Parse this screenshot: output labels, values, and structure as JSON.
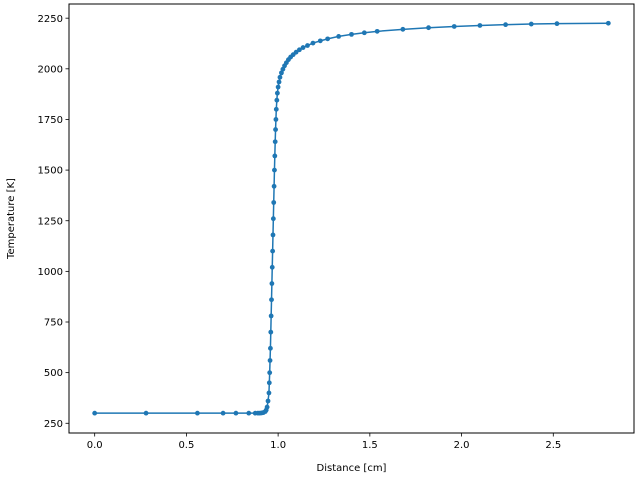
{
  "chart_data": {
    "type": "line",
    "title": "",
    "xlabel": "Distance [cm]",
    "ylabel": "Temperature [K]",
    "xlim": [
      -0.14,
      2.94
    ],
    "ylim": [
      202,
      2320
    ],
    "xticks": [
      0.0,
      0.5,
      1.0,
      1.5,
      2.0,
      2.5
    ],
    "xtick_labels": [
      "0.0",
      "0.5",
      "1.0",
      "1.5",
      "2.0",
      "2.5"
    ],
    "yticks": [
      250,
      500,
      750,
      1000,
      1250,
      1500,
      1750,
      2000,
      2250
    ],
    "ytick_labels": [
      "250",
      "500",
      "750",
      "1000",
      "1250",
      "1500",
      "1750",
      "2000",
      "2250"
    ],
    "grid": false,
    "legend": null,
    "series": [
      {
        "name": "Temperature",
        "color": "#1f77b4",
        "marker": "circle",
        "x": [
          0.0,
          0.28,
          0.56,
          0.7,
          0.77,
          0.84,
          0.875,
          0.89,
          0.9,
          0.91,
          0.92,
          0.93,
          0.935,
          0.94,
          0.945,
          0.95,
          0.952,
          0.954,
          0.956,
          0.958,
          0.96,
          0.962,
          0.964,
          0.966,
          0.968,
          0.97,
          0.972,
          0.974,
          0.976,
          0.978,
          0.98,
          0.982,
          0.984,
          0.986,
          0.988,
          0.99,
          0.993,
          0.996,
          1.0,
          1.005,
          1.01,
          1.018,
          1.026,
          1.035,
          1.045,
          1.056,
          1.068,
          1.082,
          1.098,
          1.116,
          1.136,
          1.16,
          1.19,
          1.23,
          1.27,
          1.33,
          1.4,
          1.47,
          1.54,
          1.68,
          1.82,
          1.96,
          2.1,
          2.24,
          2.38,
          2.52,
          2.8
        ],
        "y": [
          300,
          300,
          300,
          300,
          300,
          300,
          300,
          300,
          300,
          301,
          303,
          308,
          315,
          330,
          360,
          400,
          450,
          500,
          560,
          620,
          700,
          780,
          860,
          940,
          1020,
          1100,
          1180,
          1260,
          1340,
          1420,
          1500,
          1570,
          1640,
          1700,
          1750,
          1800,
          1845,
          1880,
          1910,
          1935,
          1958,
          1980,
          1998,
          2015,
          2030,
          2045,
          2058,
          2070,
          2082,
          2094,
          2105,
          2115,
          2127,
          2138,
          2148,
          2160,
          2170,
          2178,
          2185,
          2195,
          2203,
          2209,
          2214,
          2218,
          2221,
          2223,
          2225
        ]
      }
    ]
  }
}
